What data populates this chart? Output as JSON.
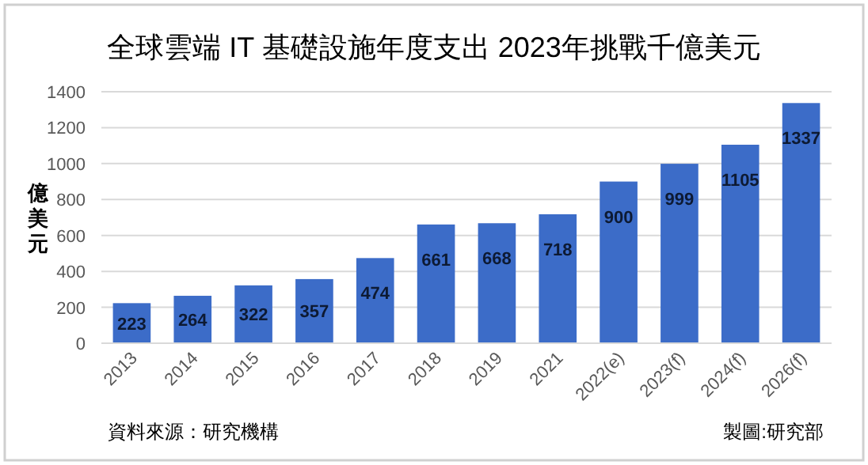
{
  "chart_data": {
    "type": "bar",
    "title": "全球雲端 IT 基礎設施年度支出 2023年挑戰千億美元",
    "ylabel": "億美元",
    "categories": [
      "2013",
      "2014",
      "2015",
      "2016",
      "2017",
      "2018",
      "2019",
      "2021",
      "2022(e)",
      "2023(f)",
      "2024(f)",
      "2026(f)"
    ],
    "values": [
      223,
      264,
      322,
      357,
      474,
      661,
      668,
      718,
      900,
      999,
      1105,
      1337
    ],
    "color": "#3c6cc8",
    "ylim": [
      0,
      1400
    ],
    "yticks": [
      0,
      200,
      400,
      600,
      800,
      1000,
      1200,
      1400
    ],
    "grid": "y",
    "data_labels": true,
    "annotations": [
      "資料來源：研究機構",
      "製圖:研究部"
    ]
  }
}
